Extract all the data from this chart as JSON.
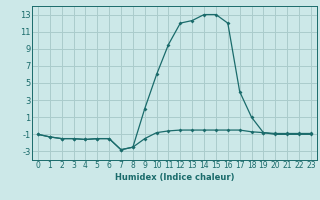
{
  "title": "",
  "xlabel": "Humidex (Indice chaleur)",
  "background_color": "#cce8e8",
  "grid_color": "#aacccc",
  "line_color": "#1a6b6b",
  "xlim": [
    -0.5,
    23.5
  ],
  "ylim": [
    -4,
    14
  ],
  "yticks": [
    -3,
    -1,
    1,
    3,
    5,
    7,
    9,
    11,
    13
  ],
  "xticks": [
    0,
    1,
    2,
    3,
    4,
    5,
    6,
    7,
    8,
    9,
    10,
    11,
    12,
    13,
    14,
    15,
    16,
    17,
    18,
    19,
    20,
    21,
    22,
    23
  ],
  "series1_x": [
    0,
    1,
    2,
    3,
    4,
    5,
    6,
    7,
    8,
    9,
    10,
    11,
    12,
    13,
    14,
    15,
    16,
    17,
    18,
    19,
    20,
    21,
    22,
    23
  ],
  "series1_y": [
    -1.0,
    -1.3,
    -1.5,
    -1.5,
    -1.6,
    -1.5,
    -1.5,
    -2.8,
    -2.5,
    -1.5,
    -0.8,
    -0.6,
    -0.5,
    -0.5,
    -0.5,
    -0.5,
    -0.5,
    -0.5,
    -0.7,
    -0.8,
    -0.9,
    -0.9,
    -0.9,
    -0.9
  ],
  "series2_x": [
    0,
    1,
    2,
    3,
    4,
    5,
    6,
    7,
    8,
    9,
    10,
    11,
    12,
    13,
    14,
    15,
    16,
    17,
    18,
    19,
    20,
    21,
    22,
    23
  ],
  "series2_y": [
    -1.0,
    -1.3,
    -1.5,
    -1.5,
    -1.6,
    -1.5,
    -1.5,
    -2.8,
    -2.5,
    2.0,
    6.0,
    9.5,
    12.0,
    12.3,
    13.0,
    13.0,
    12.0,
    4.0,
    1.0,
    -0.8,
    -1.0,
    -1.0,
    -1.0,
    -1.0
  ],
  "marker_size": 2.0,
  "line_width": 0.9,
  "xlabel_fontsize": 6.0,
  "tick_fontsize": 5.5
}
